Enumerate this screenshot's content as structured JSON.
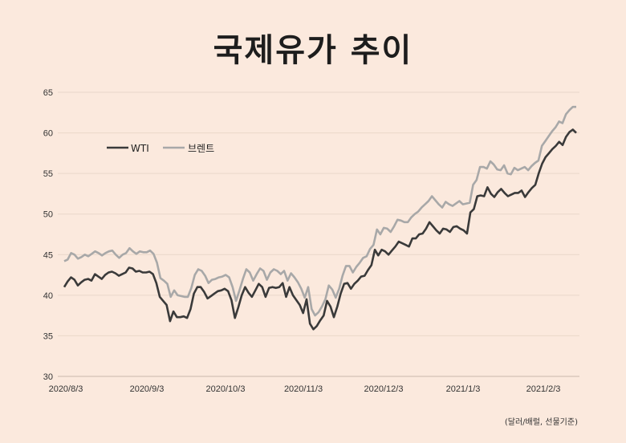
{
  "title": "국제유가 추이",
  "note": "(달러/배럴, 선물기준)",
  "legend": [
    {
      "name": "WTI",
      "color": "#3a3a3a"
    },
    {
      "name": "브렌트",
      "color": "#a8a8a8"
    }
  ],
  "chart_data": {
    "type": "line",
    "title": "국제유가 추이",
    "xlabel": "",
    "ylabel": "달러/배럴, 선물기준",
    "ylim": [
      30,
      65
    ],
    "yticks": [
      30,
      35,
      40,
      45,
      50,
      55,
      60,
      65
    ],
    "xticks": [
      "2020/8/3",
      "2020/9/3",
      "2020/10/3",
      "2020/11/3",
      "2020/12/3",
      "2021/1/3",
      "2021/2/3"
    ],
    "grid": true,
    "legend_position": "upper-left",
    "series": [
      {
        "name": "WTI",
        "color": "#3a3a3a",
        "values": [
          41.0,
          41.7,
          42.2,
          41.9,
          41.2,
          41.6,
          41.9,
          42.0,
          41.8,
          42.6,
          42.3,
          42.0,
          42.5,
          42.8,
          42.9,
          42.7,
          42.4,
          42.6,
          42.8,
          43.4,
          43.3,
          42.9,
          43.0,
          42.8,
          42.8,
          42.9,
          42.6,
          41.5,
          39.8,
          39.3,
          38.8,
          36.8,
          38.0,
          37.3,
          37.3,
          37.4,
          37.2,
          38.3,
          40.2,
          41.0,
          41.0,
          40.4,
          39.6,
          39.9,
          40.2,
          40.5,
          40.6,
          40.8,
          40.5,
          39.4,
          37.2,
          38.5,
          40.0,
          41.0,
          40.3,
          39.8,
          40.6,
          41.4,
          41.0,
          39.8,
          40.9,
          41.0,
          40.9,
          41.0,
          41.5,
          39.8,
          41.0,
          40.0,
          39.4,
          38.8,
          37.8,
          39.5,
          36.5,
          35.8,
          36.2,
          36.9,
          37.5,
          39.3,
          38.6,
          37.3,
          38.6,
          40.2,
          41.4,
          41.5,
          40.8,
          41.4,
          41.8,
          42.3,
          42.4,
          43.1,
          43.7,
          45.6,
          44.9,
          45.6,
          45.4,
          45.0,
          45.5,
          46.0,
          46.6,
          46.4,
          46.2,
          46.0,
          47.0,
          47.0,
          47.5,
          47.6,
          48.2,
          49.0,
          48.5,
          48.0,
          47.6,
          48.2,
          48.1,
          47.8,
          48.4,
          48.5,
          48.2,
          48.0,
          47.6,
          50.2,
          50.6,
          52.2,
          52.3,
          52.2,
          53.3,
          52.5,
          52.1,
          52.7,
          53.1,
          52.6,
          52.2,
          52.4,
          52.6,
          52.6,
          52.9,
          52.1,
          52.7,
          53.2,
          53.6,
          55.0,
          56.2,
          57.0,
          57.5,
          58.0,
          58.4,
          58.9,
          58.5,
          59.5,
          60.1,
          60.4,
          60.0
        ]
      },
      {
        "name": "브렌트",
        "color": "#a8a8a8",
        "values": [
          44.2,
          44.4,
          45.2,
          45.0,
          44.5,
          44.7,
          45.0,
          44.8,
          45.1,
          45.4,
          45.2,
          44.9,
          45.2,
          45.4,
          45.5,
          45.0,
          44.6,
          45.0,
          45.2,
          45.8,
          45.4,
          45.1,
          45.4,
          45.3,
          45.3,
          45.5,
          45.1,
          44.0,
          42.1,
          41.8,
          41.4,
          39.8,
          40.6,
          40.0,
          39.9,
          39.8,
          39.8,
          40.9,
          42.5,
          43.2,
          43.0,
          42.4,
          41.5,
          41.9,
          42.0,
          42.2,
          42.3,
          42.5,
          42.2,
          41.0,
          39.3,
          40.6,
          42.0,
          43.2,
          42.8,
          41.8,
          42.6,
          43.3,
          43.0,
          41.9,
          42.8,
          43.2,
          43.0,
          42.6,
          43.0,
          41.8,
          42.7,
          42.2,
          41.6,
          40.8,
          39.7,
          41.0,
          38.3,
          37.5,
          37.9,
          38.6,
          39.5,
          41.2,
          40.7,
          39.7,
          40.8,
          42.4,
          43.6,
          43.6,
          42.8,
          43.5,
          44.0,
          44.6,
          44.8,
          45.7,
          46.2,
          48.1,
          47.5,
          48.3,
          48.2,
          47.8,
          48.5,
          49.3,
          49.2,
          49.0,
          49.0,
          49.6,
          50.0,
          50.3,
          50.8,
          51.2,
          51.6,
          52.2,
          51.7,
          51.2,
          50.8,
          51.5,
          51.2,
          51.0,
          51.3,
          51.6,
          51.2,
          51.3,
          51.4,
          53.6,
          54.2,
          55.8,
          55.8,
          55.6,
          56.5,
          56.1,
          55.5,
          55.4,
          56.0,
          55.0,
          54.9,
          55.7,
          55.4,
          55.6,
          55.8,
          55.4,
          55.9,
          56.3,
          56.6,
          58.4,
          59.0,
          59.6,
          60.2,
          60.7,
          61.4,
          61.2,
          62.3,
          62.8,
          63.2,
          63.2
        ]
      }
    ]
  }
}
